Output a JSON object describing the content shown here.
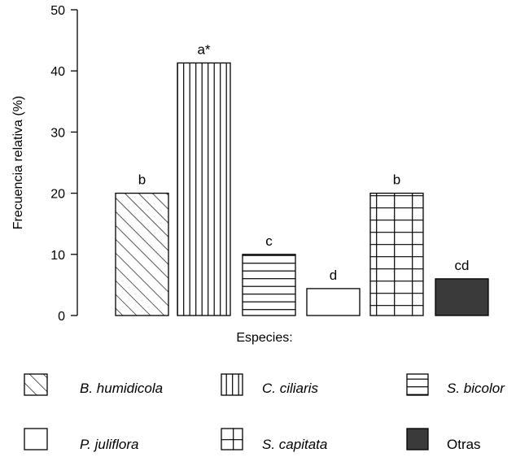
{
  "chart_data": {
    "type": "bar",
    "categories": [
      "B. humidicola",
      "C. ciliaris",
      "S. bicolor",
      "P. juliflora",
      "S. capitata",
      "Otras"
    ],
    "values": [
      20,
      41.3,
      10,
      4.4,
      20,
      6
    ],
    "bar_labels": [
      "b",
      "a*",
      "c",
      "d",
      "b",
      "cd"
    ],
    "patterns": [
      "diagonal",
      "vertical",
      "horizontal",
      "empty",
      "grid",
      "solid"
    ],
    "xlabel": "Especies:",
    "ylabel": "Frecuencia relativa (%)",
    "ylim": [
      0,
      50
    ],
    "yticks": [
      0,
      10,
      20,
      30,
      40,
      50
    ],
    "grid": false,
    "legend_position": "bottom",
    "colors": {
      "fill": "#ffffff",
      "stroke": "#000000",
      "solid": "#3a3a3a"
    }
  }
}
